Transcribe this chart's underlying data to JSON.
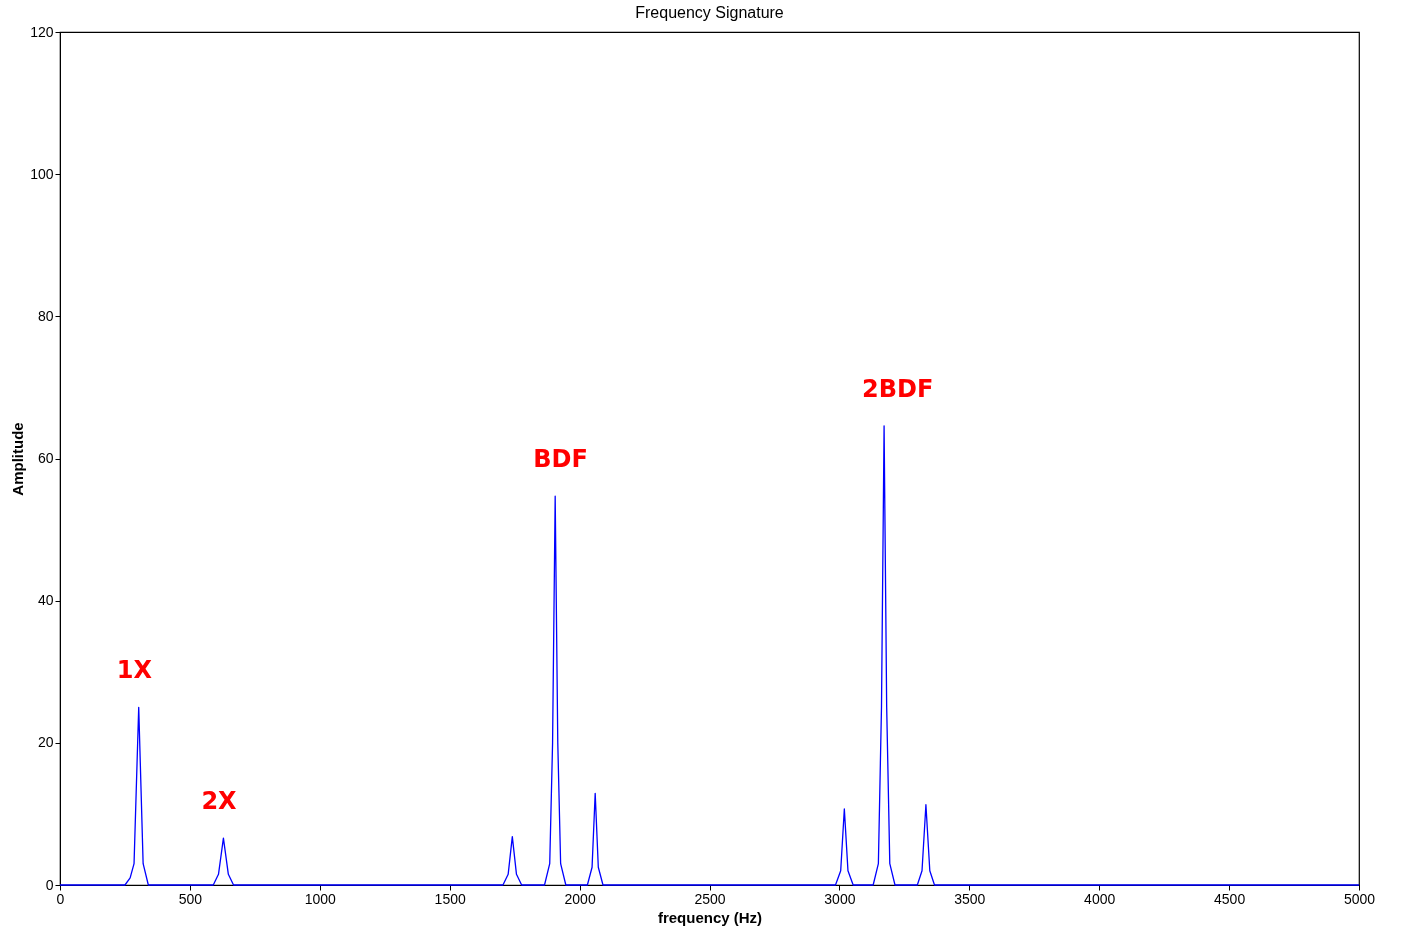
{
  "chart_data": {
    "type": "line",
    "title": "Frequency Signature",
    "xlabel": "frequency (Hz)",
    "ylabel": "Amplitude",
    "xlim": [
      0,
      5000
    ],
    "xticks": [
      0,
      500,
      1000,
      1500,
      2000,
      2500,
      3000,
      3500,
      4000,
      4500,
      5000
    ],
    "ylim": [
      0,
      120
    ],
    "yticks": [
      0,
      20,
      40,
      60,
      80,
      100,
      120
    ],
    "grid": false,
    "marker": "none",
    "line_style": "solid",
    "series": [
      {
        "color": "#0000ff",
        "x": [
          0,
          250,
          270,
          285,
          303,
          320,
          340,
          590,
          610,
          629,
          648,
          668,
          1705,
          1725,
          1741,
          1757,
          1777,
          1865,
          1885,
          1896,
          1906,
          1916,
          1927,
          1947,
          2030,
          2048,
          2060,
          2072,
          2090,
          2985,
          3005,
          3019,
          3033,
          3053,
          3130,
          3150,
          3162,
          3172,
          3182,
          3194,
          3214,
          3300,
          3318,
          3333,
          3348,
          3366,
          5000
        ],
        "values": [
          0,
          0,
          1,
          3,
          25,
          3,
          0,
          0,
          1.5,
          6.6,
          1.5,
          0,
          0,
          1.5,
          6.8,
          1.5,
          0,
          0,
          3,
          20,
          54.7,
          20,
          3,
          0,
          0,
          2.5,
          12.9,
          2.5,
          0,
          0,
          2,
          10.7,
          2,
          0,
          0,
          3,
          25,
          64.6,
          25,
          3,
          0,
          0,
          2,
          11.3,
          2,
          0,
          0
        ]
      }
    ],
    "annotations": [
      {
        "text": "1X",
        "x": 303,
        "y": 25
      },
      {
        "text": "2X",
        "x": 629,
        "y": 6.6
      },
      {
        "text": "BDF",
        "x": 1906,
        "y": 54.7
      },
      {
        "text": "2BDF",
        "x": 3172,
        "y": 64.6
      }
    ]
  }
}
